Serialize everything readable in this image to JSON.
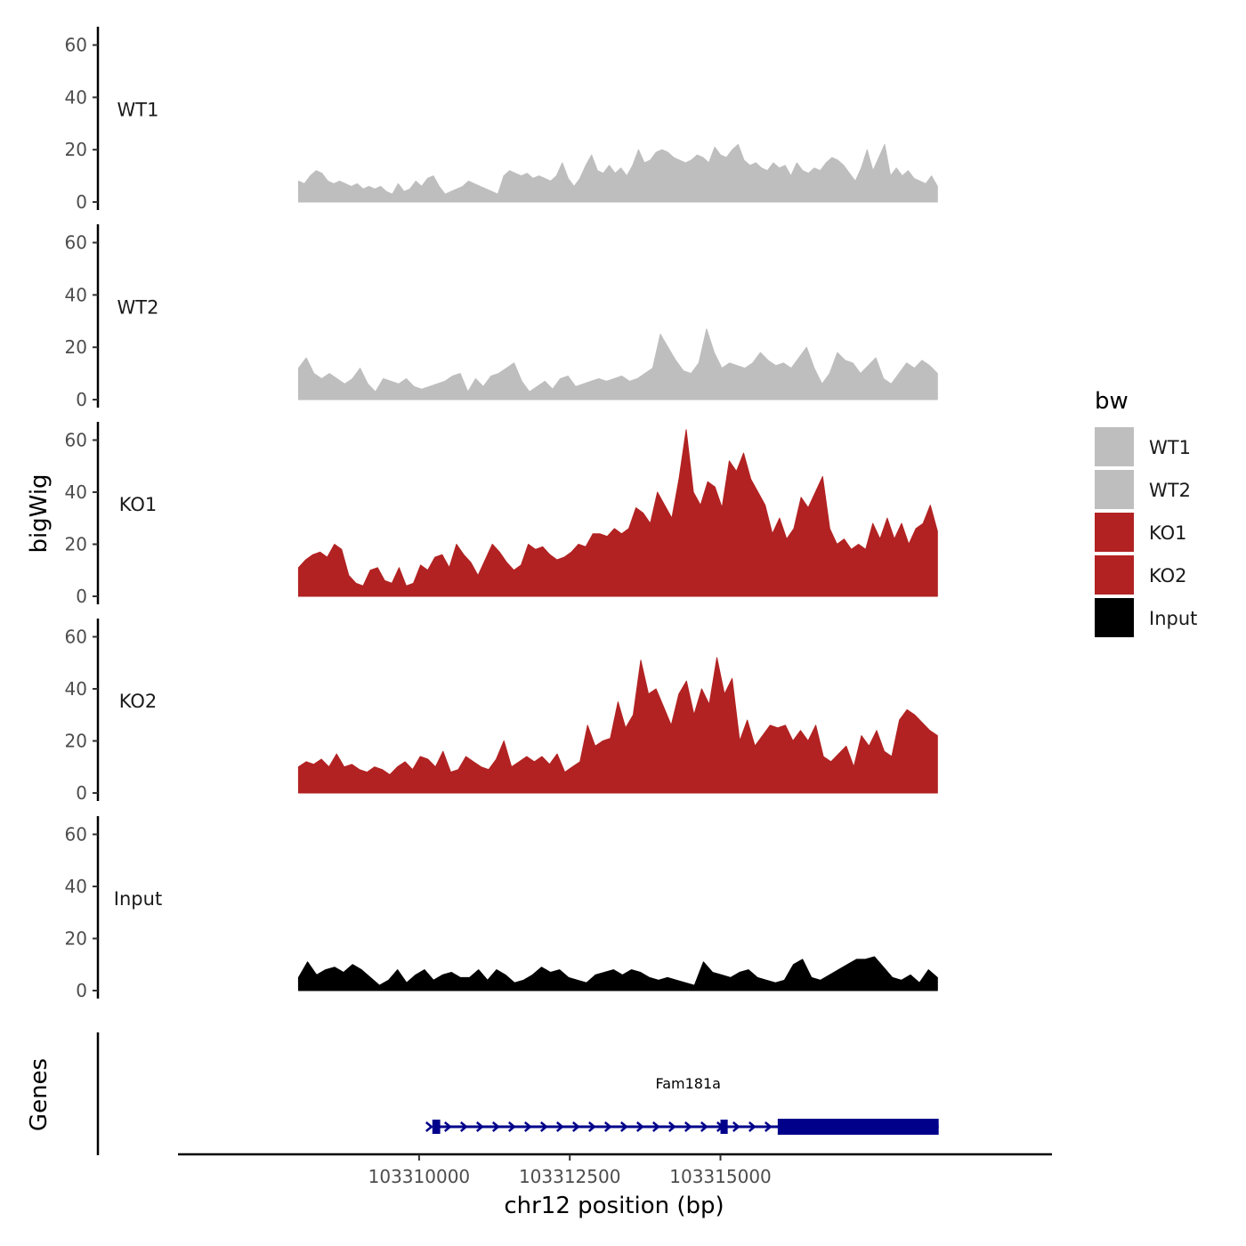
{
  "chart_data": {
    "type": "area",
    "ylabel": "bigWig",
    "xlabel": "chr12 position (bp)",
    "genes_label": "Genes",
    "y_ticks": [
      "0",
      "20",
      "40",
      "60"
    ],
    "ylim": [
      0,
      67
    ],
    "x_ticks": [
      {
        "value": 103310000,
        "label": "103310000"
      },
      {
        "value": 103312500,
        "label": "103312500"
      },
      {
        "value": 103315000,
        "label": "103315000"
      }
    ],
    "xlim": [
      103306000,
      103320500
    ],
    "data_range": [
      103308000,
      103318600
    ],
    "legend": {
      "title": "bw",
      "entries": [
        {
          "label": "WT1",
          "color": "#bebebe"
        },
        {
          "label": "WT2",
          "color": "#bebebe"
        },
        {
          "label": "KO1",
          "color": "#b22222"
        },
        {
          "label": "KO2",
          "color": "#b22222"
        },
        {
          "label": "Input",
          "color": "#000000"
        }
      ]
    },
    "series": [
      {
        "name": "WT1",
        "color": "#bebebe",
        "values": [
          8,
          7,
          10,
          12,
          11,
          8,
          7,
          8,
          7,
          6,
          7,
          5,
          6,
          5,
          6,
          4,
          3,
          7,
          4,
          5,
          8,
          6,
          9,
          10,
          6,
          3,
          4,
          5,
          6,
          8,
          7,
          6,
          5,
          4,
          3,
          10,
          12,
          11,
          10,
          11,
          9,
          10,
          9,
          8,
          10,
          15,
          9,
          6,
          9,
          14,
          18,
          12,
          11,
          14,
          11,
          13,
          10,
          14,
          20,
          15,
          16,
          19,
          20,
          19,
          17,
          16,
          15,
          16,
          18,
          17,
          15,
          21,
          18,
          17,
          20,
          22,
          16,
          14,
          15,
          13,
          12,
          15,
          13,
          14,
          10,
          15,
          12,
          11,
          13,
          12,
          15,
          17,
          16,
          14,
          11,
          8,
          13,
          20,
          12,
          17,
          22,
          10,
          13,
          10,
          12,
          9,
          8,
          7,
          10,
          6
        ],
        "sample_step": 6
      },
      {
        "name": "WT2",
        "color": "#bebebe",
        "values": [
          12,
          16,
          10,
          8,
          10,
          8,
          6,
          8,
          12,
          6,
          3,
          8,
          7,
          6,
          8,
          5,
          4,
          5,
          6,
          7,
          9,
          10,
          3,
          8,
          5,
          9,
          10,
          12,
          14,
          7,
          3,
          5,
          7,
          4,
          8,
          9,
          5,
          6,
          7,
          8,
          7,
          8,
          9,
          7,
          8,
          10,
          12,
          25,
          20,
          15,
          11,
          10,
          14,
          27,
          18,
          12,
          14,
          13,
          12,
          14,
          18,
          15,
          13,
          14,
          12,
          16,
          20,
          12,
          6,
          10,
          18,
          15,
          14,
          10,
          13,
          16,
          8,
          6,
          10,
          14,
          12,
          15,
          13,
          10
        ],
        "sample_step": 8
      },
      {
        "name": "KO1",
        "color": "#b22222",
        "values": [
          11,
          14,
          16,
          17,
          15,
          20,
          18,
          8,
          5,
          4,
          10,
          11,
          6,
          5,
          11,
          4,
          5,
          12,
          10,
          15,
          16,
          11,
          20,
          16,
          13,
          8,
          14,
          20,
          17,
          13,
          10,
          12,
          20,
          18,
          19,
          16,
          14,
          15,
          17,
          20,
          19,
          24,
          24,
          23,
          26,
          24,
          26,
          34,
          32,
          28,
          40,
          35,
          30,
          45,
          64,
          40,
          35,
          44,
          42,
          34,
          52,
          48,
          55,
          45,
          40,
          35,
          24,
          30,
          22,
          26,
          38,
          34,
          40,
          46,
          26,
          20,
          22,
          18,
          20,
          18,
          28,
          22,
          30,
          22,
          28,
          20,
          26,
          28,
          35,
          25
        ],
        "sample_step": 8
      },
      {
        "name": "KO2",
        "color": "#b22222",
        "values": [
          10,
          12,
          11,
          13,
          10,
          15,
          10,
          11,
          9,
          8,
          10,
          9,
          7,
          10,
          12,
          9,
          14,
          13,
          10,
          16,
          8,
          9,
          14,
          12,
          10,
          9,
          13,
          20,
          10,
          12,
          14,
          12,
          14,
          11,
          15,
          8,
          10,
          12,
          26,
          18,
          20,
          21,
          35,
          25,
          30,
          51,
          38,
          40,
          33,
          26,
          38,
          43,
          30,
          40,
          34,
          52,
          38,
          44,
          20,
          28,
          18,
          22,
          26,
          25,
          26,
          20,
          24,
          20,
          26,
          14,
          12,
          15,
          18,
          10,
          22,
          18,
          24,
          16,
          14,
          28,
          32,
          30,
          27,
          24,
          22
        ],
        "sample_step": 8
      },
      {
        "name": "Input",
        "color": "#000000",
        "values": [
          5,
          11,
          6,
          8,
          9,
          7,
          10,
          8,
          5,
          2,
          4,
          8,
          3,
          6,
          8,
          4,
          6,
          7,
          5,
          5,
          8,
          4,
          8,
          6,
          3,
          4,
          6,
          9,
          7,
          8,
          5,
          4,
          3,
          6,
          7,
          8,
          6,
          8,
          7,
          5,
          4,
          5,
          4,
          3,
          2,
          11,
          7,
          6,
          5,
          7,
          8,
          5,
          4,
          3,
          4,
          10,
          12,
          5,
          4,
          6,
          8,
          10,
          12,
          12,
          13,
          9,
          5,
          4,
          6,
          3,
          8,
          5
        ],
        "sample_step": 10
      }
    ],
    "genes": [
      {
        "name": "Fam181a",
        "start": 103310220,
        "end": 103318620,
        "strand": "+",
        "exons": [
          {
            "start": 103310220,
            "end": 103310350,
            "thick": false
          },
          {
            "start": 103315000,
            "end": 103315120,
            "thick": false
          },
          {
            "start": 103315950,
            "end": 103318620,
            "thick": true
          }
        ],
        "color": "#00008b"
      }
    ]
  }
}
